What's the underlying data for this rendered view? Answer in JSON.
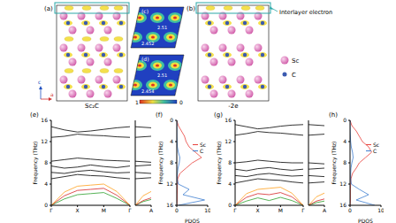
{
  "figure": {
    "panel_labels": {
      "a": "(a)",
      "b": "(b)",
      "c": "(c)",
      "d": "(d)"
    },
    "structures": [
      {
        "label": "Sc₂C"
      },
      {
        "label": "-2e"
      }
    ],
    "annotation": "Interlayer electron",
    "axes": [
      "c",
      "a"
    ],
    "atoms": [
      {
        "name": "Sc",
        "color": "#d05aa8"
      },
      {
        "name": "C",
        "color": "#3b5bb0"
      }
    ],
    "charge_maps": {
      "c": [
        2.51,
        2.452
      ],
      "d": [
        2.51,
        2.454
      ]
    },
    "colorbar_ticks": [
      1,
      0
    ]
  },
  "chart_data": [
    {
      "type": "line",
      "title": "(e)",
      "ylabel": "Frequency (THz)",
      "x": [
        0,
        0.5,
        1,
        1.5,
        2,
        2.5,
        3
      ],
      "xlim": [
        0,
        3
      ],
      "xticks": [
        {
          "value": 0,
          "label": "Γ"
        },
        {
          "value": 1,
          "label": "X"
        },
        {
          "value": 2,
          "label": "M"
        },
        {
          "value": 3,
          "label": "Γ"
        }
      ],
      "ylim": [
        0,
        16
      ],
      "yticks": [
        0,
        4,
        8,
        12,
        16
      ],
      "series": [
        {
          "color": "#2ca02c",
          "values": [
            0,
            1.2,
            2.0,
            2.2,
            2.4,
            1.3,
            0
          ]
        },
        {
          "color": "#d62728",
          "values": [
            0,
            1.8,
            2.8,
            3.0,
            3.2,
            1.9,
            0
          ]
        },
        {
          "color": "#ff9f1c",
          "values": [
            0,
            2.5,
            3.6,
            3.8,
            4.0,
            2.6,
            0
          ]
        },
        {
          "color": "#000000",
          "values": [
            5.0,
            5.4,
            5.8,
            5.6,
            5.5,
            5.2,
            5.0
          ]
        },
        {
          "color": "#000000",
          "values": [
            6.2,
            6.0,
            6.4,
            6.6,
            6.3,
            6.1,
            6.2
          ]
        },
        {
          "color": "#000000",
          "values": [
            7.4,
            7.0,
            7.2,
            7.6,
            7.3,
            7.1,
            7.4
          ]
        },
        {
          "color": "#000000",
          "values": [
            8.3,
            8.6,
            8.9,
            8.7,
            8.5,
            8.4,
            8.3
          ]
        },
        {
          "color": "#000000",
          "values": [
            12.8,
            13.0,
            13.4,
            13.2,
            13.1,
            12.9,
            12.8
          ]
        },
        {
          "color": "#000000",
          "values": [
            14.8,
            14.2,
            13.8,
            14.0,
            14.3,
            14.6,
            14.8
          ]
        }
      ]
    },
    {
      "type": "line",
      "x": [
        0,
        0.5,
        1
      ],
      "xlim": [
        0,
        1
      ],
      "xticks": [
        {
          "value": 1,
          "label": "A"
        }
      ],
      "ylim": [
        0,
        16
      ],
      "yticks": [
        0,
        4,
        8,
        12,
        16
      ],
      "tick_labels": "x",
      "series": [
        {
          "color": "#2ca02c",
          "values": [
            0,
            0.7,
            1.1
          ]
        },
        {
          "color": "#d62728",
          "values": [
            0,
            0.9,
            1.4
          ]
        },
        {
          "color": "#ff9f1c",
          "values": [
            0,
            1.8,
            2.6
          ]
        },
        {
          "color": "#000000",
          "values": [
            5.0,
            5.1,
            5.2
          ]
        },
        {
          "color": "#000000",
          "values": [
            6.2,
            6.1,
            6.0
          ]
        },
        {
          "color": "#000000",
          "values": [
            7.4,
            7.5,
            7.6
          ]
        },
        {
          "color": "#000000",
          "values": [
            8.3,
            8.2,
            8.1
          ]
        },
        {
          "color": "#000000",
          "values": [
            12.8,
            12.9,
            13.0
          ]
        },
        {
          "color": "#000000",
          "values": [
            14.8,
            14.7,
            14.6
          ]
        }
      ]
    },
    {
      "type": "line",
      "title": "(f)",
      "orientation": "horizontal",
      "xlabel": "PDOS",
      "ylabel": "Frequency (THz)",
      "legend": "upper right",
      "y": [
        0,
        1,
        2,
        3,
        4,
        5,
        6,
        7,
        8,
        9,
        10,
        11,
        12,
        13,
        14,
        15,
        16
      ],
      "xlim": [
        0,
        10
      ],
      "xticks": [
        0,
        10
      ],
      "ylim": [
        0,
        16
      ],
      "yticks": [
        0,
        4,
        8,
        12,
        16
      ],
      "series": [
        {
          "name": "Sc",
          "color": "#e8413c",
          "values": [
            0,
            0.5,
            1.5,
            2.5,
            3,
            4,
            6,
            8,
            5,
            3,
            1,
            0.3,
            0.2,
            0.2,
            0.1,
            0.1,
            0
          ]
        },
        {
          "name": "C",
          "color": "#3f7fd0",
          "values": [
            0,
            0,
            0,
            0,
            0.1,
            0.2,
            0.5,
            1,
            0.8,
            0.4,
            0.2,
            0.1,
            0.5,
            4,
            2,
            9,
            0.5
          ]
        }
      ]
    },
    {
      "type": "line",
      "title": "(g)",
      "ylabel": "Frequency (THz)",
      "x": [
        0,
        0.5,
        1,
        1.5,
        2,
        2.5,
        3
      ],
      "xlim": [
        0,
        3
      ],
      "xticks": [
        {
          "value": 0,
          "label": "Γ"
        },
        {
          "value": 1,
          "label": "X"
        },
        {
          "value": 2,
          "label": "M"
        },
        {
          "value": 3,
          "label": "Γ"
        }
      ],
      "ylim": [
        0,
        16
      ],
      "yticks": [
        0,
        4,
        8,
        12,
        16
      ],
      "series": [
        {
          "color": "#2ca02c",
          "values": [
            0,
            0.8,
            1.4,
            0.9,
            1.5,
            0.9,
            0
          ]
        },
        {
          "color": "#d62728",
          "values": [
            0,
            1.5,
            2.2,
            2.0,
            2.4,
            1.6,
            0
          ]
        },
        {
          "color": "#ff9f1c",
          "values": [
            0,
            2.2,
            3.0,
            3.2,
            3.4,
            2.3,
            0
          ]
        },
        {
          "color": "#000000",
          "values": [
            4.2,
            4.6,
            5.0,
            4.8,
            4.7,
            4.4,
            4.2
          ]
        },
        {
          "color": "#000000",
          "values": [
            5.6,
            5.4,
            5.8,
            6.0,
            5.7,
            5.5,
            5.6
          ]
        },
        {
          "color": "#000000",
          "values": [
            6.8,
            6.5,
            6.9,
            7.1,
            6.8,
            6.6,
            6.8
          ]
        },
        {
          "color": "#000000",
          "values": [
            8.0,
            8.2,
            8.5,
            8.3,
            8.1,
            8.0,
            8.0
          ]
        },
        {
          "color": "#000000",
          "values": [
            13.2,
            13.5,
            13.9,
            13.7,
            13.6,
            13.4,
            13.2
          ]
        },
        {
          "color": "#000000",
          "values": [
            15.2,
            14.8,
            14.4,
            14.6,
            14.9,
            15.1,
            15.2
          ]
        }
      ]
    },
    {
      "type": "line",
      "x": [
        0,
        0.5,
        1
      ],
      "xlim": [
        0,
        1
      ],
      "xticks": [
        {
          "value": 1,
          "label": "A"
        }
      ],
      "ylim": [
        0,
        16
      ],
      "yticks": [
        0,
        4,
        8,
        12,
        16
      ],
      "tick_labels": "x",
      "series": [
        {
          "color": "#2ca02c",
          "values": [
            0,
            0.5,
            0.8
          ]
        },
        {
          "color": "#d62728",
          "values": [
            0,
            0.8,
            1.2
          ]
        },
        {
          "color": "#ff9f1c",
          "values": [
            0,
            1.6,
            2.3
          ]
        },
        {
          "color": "#000000",
          "values": [
            4.2,
            4.3,
            4.4
          ]
        },
        {
          "color": "#000000",
          "values": [
            5.6,
            5.5,
            5.4
          ]
        },
        {
          "color": "#000000",
          "values": [
            6.8,
            6.9,
            7.0
          ]
        },
        {
          "color": "#000000",
          "values": [
            8.0,
            7.9,
            7.8
          ]
        },
        {
          "color": "#000000",
          "values": [
            13.2,
            13.3,
            13.4
          ]
        },
        {
          "color": "#000000",
          "values": [
            15.2,
            15.1,
            15.0
          ]
        }
      ]
    },
    {
      "type": "line",
      "title": "(h)",
      "orientation": "horizontal",
      "xlabel": "PDOS",
      "ylabel": "Frequency (THz)",
      "legend": "upper right",
      "y": [
        0,
        1,
        2,
        3,
        4,
        5,
        6,
        7,
        8,
        9,
        10,
        11,
        12,
        13,
        14,
        15,
        16
      ],
      "xlim": [
        0,
        10
      ],
      "xticks": [
        0,
        10
      ],
      "ylim": [
        0,
        16
      ],
      "yticks": [
        0,
        4,
        8,
        12,
        16
      ],
      "series": [
        {
          "name": "Sc",
          "color": "#e8413c",
          "values": [
            0,
            0.6,
            2,
            3,
            4,
            6,
            7,
            5,
            3,
            2,
            0.8,
            0.3,
            0.2,
            0.1,
            0.1,
            0.1,
            0
          ]
        },
        {
          "name": "C",
          "color": "#3f7fd0",
          "values": [
            0,
            0,
            0,
            0.1,
            0.2,
            0.4,
            0.8,
            1,
            0.6,
            0.3,
            0.2,
            0.2,
            0.4,
            3,
            6,
            2,
            8
          ]
        }
      ]
    }
  ]
}
